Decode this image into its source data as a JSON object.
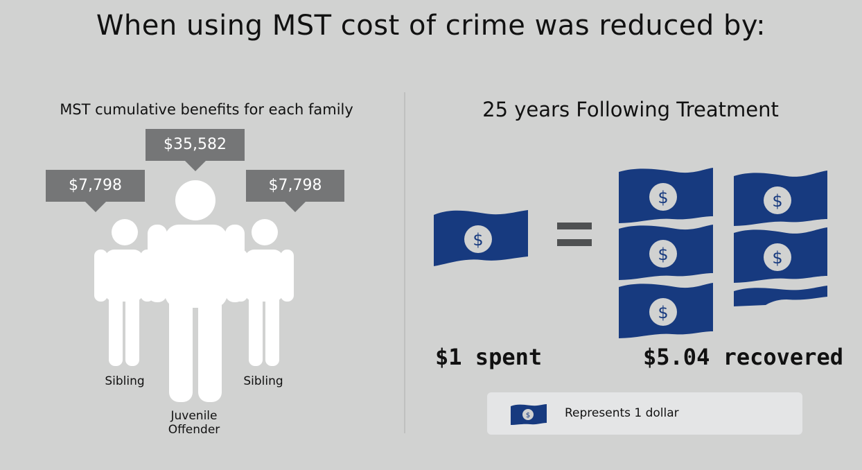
{
  "title": "When using MST cost of crime was reduced by:",
  "left_panel": {
    "subtitle": "MST cumulative benefits for each family",
    "people": [
      {
        "role": "Sibling",
        "benefit": "$7,798"
      },
      {
        "role_lines": [
          "Juvenile",
          "Offender"
        ],
        "benefit": "$35,582"
      },
      {
        "role": "Sibling",
        "benefit": "$7,798"
      }
    ]
  },
  "right_panel": {
    "subtitle": "25 years Following Treatment",
    "spent_label": "$1 spent",
    "recovered_label": "$5.04 recovered",
    "equals_symbol": "=",
    "icon_symbol": "$",
    "legend_text": "Represents 1 dollar"
  },
  "colors": {
    "background": "#d1d2d1",
    "callout": "#757677",
    "person": "#ffffff",
    "bill": "#173a7f",
    "equals": "#4f5152",
    "legend_bg": "#e4e5e6"
  },
  "icons": [
    "person-icon",
    "dollar-bill-icon",
    "equals-icon"
  ]
}
